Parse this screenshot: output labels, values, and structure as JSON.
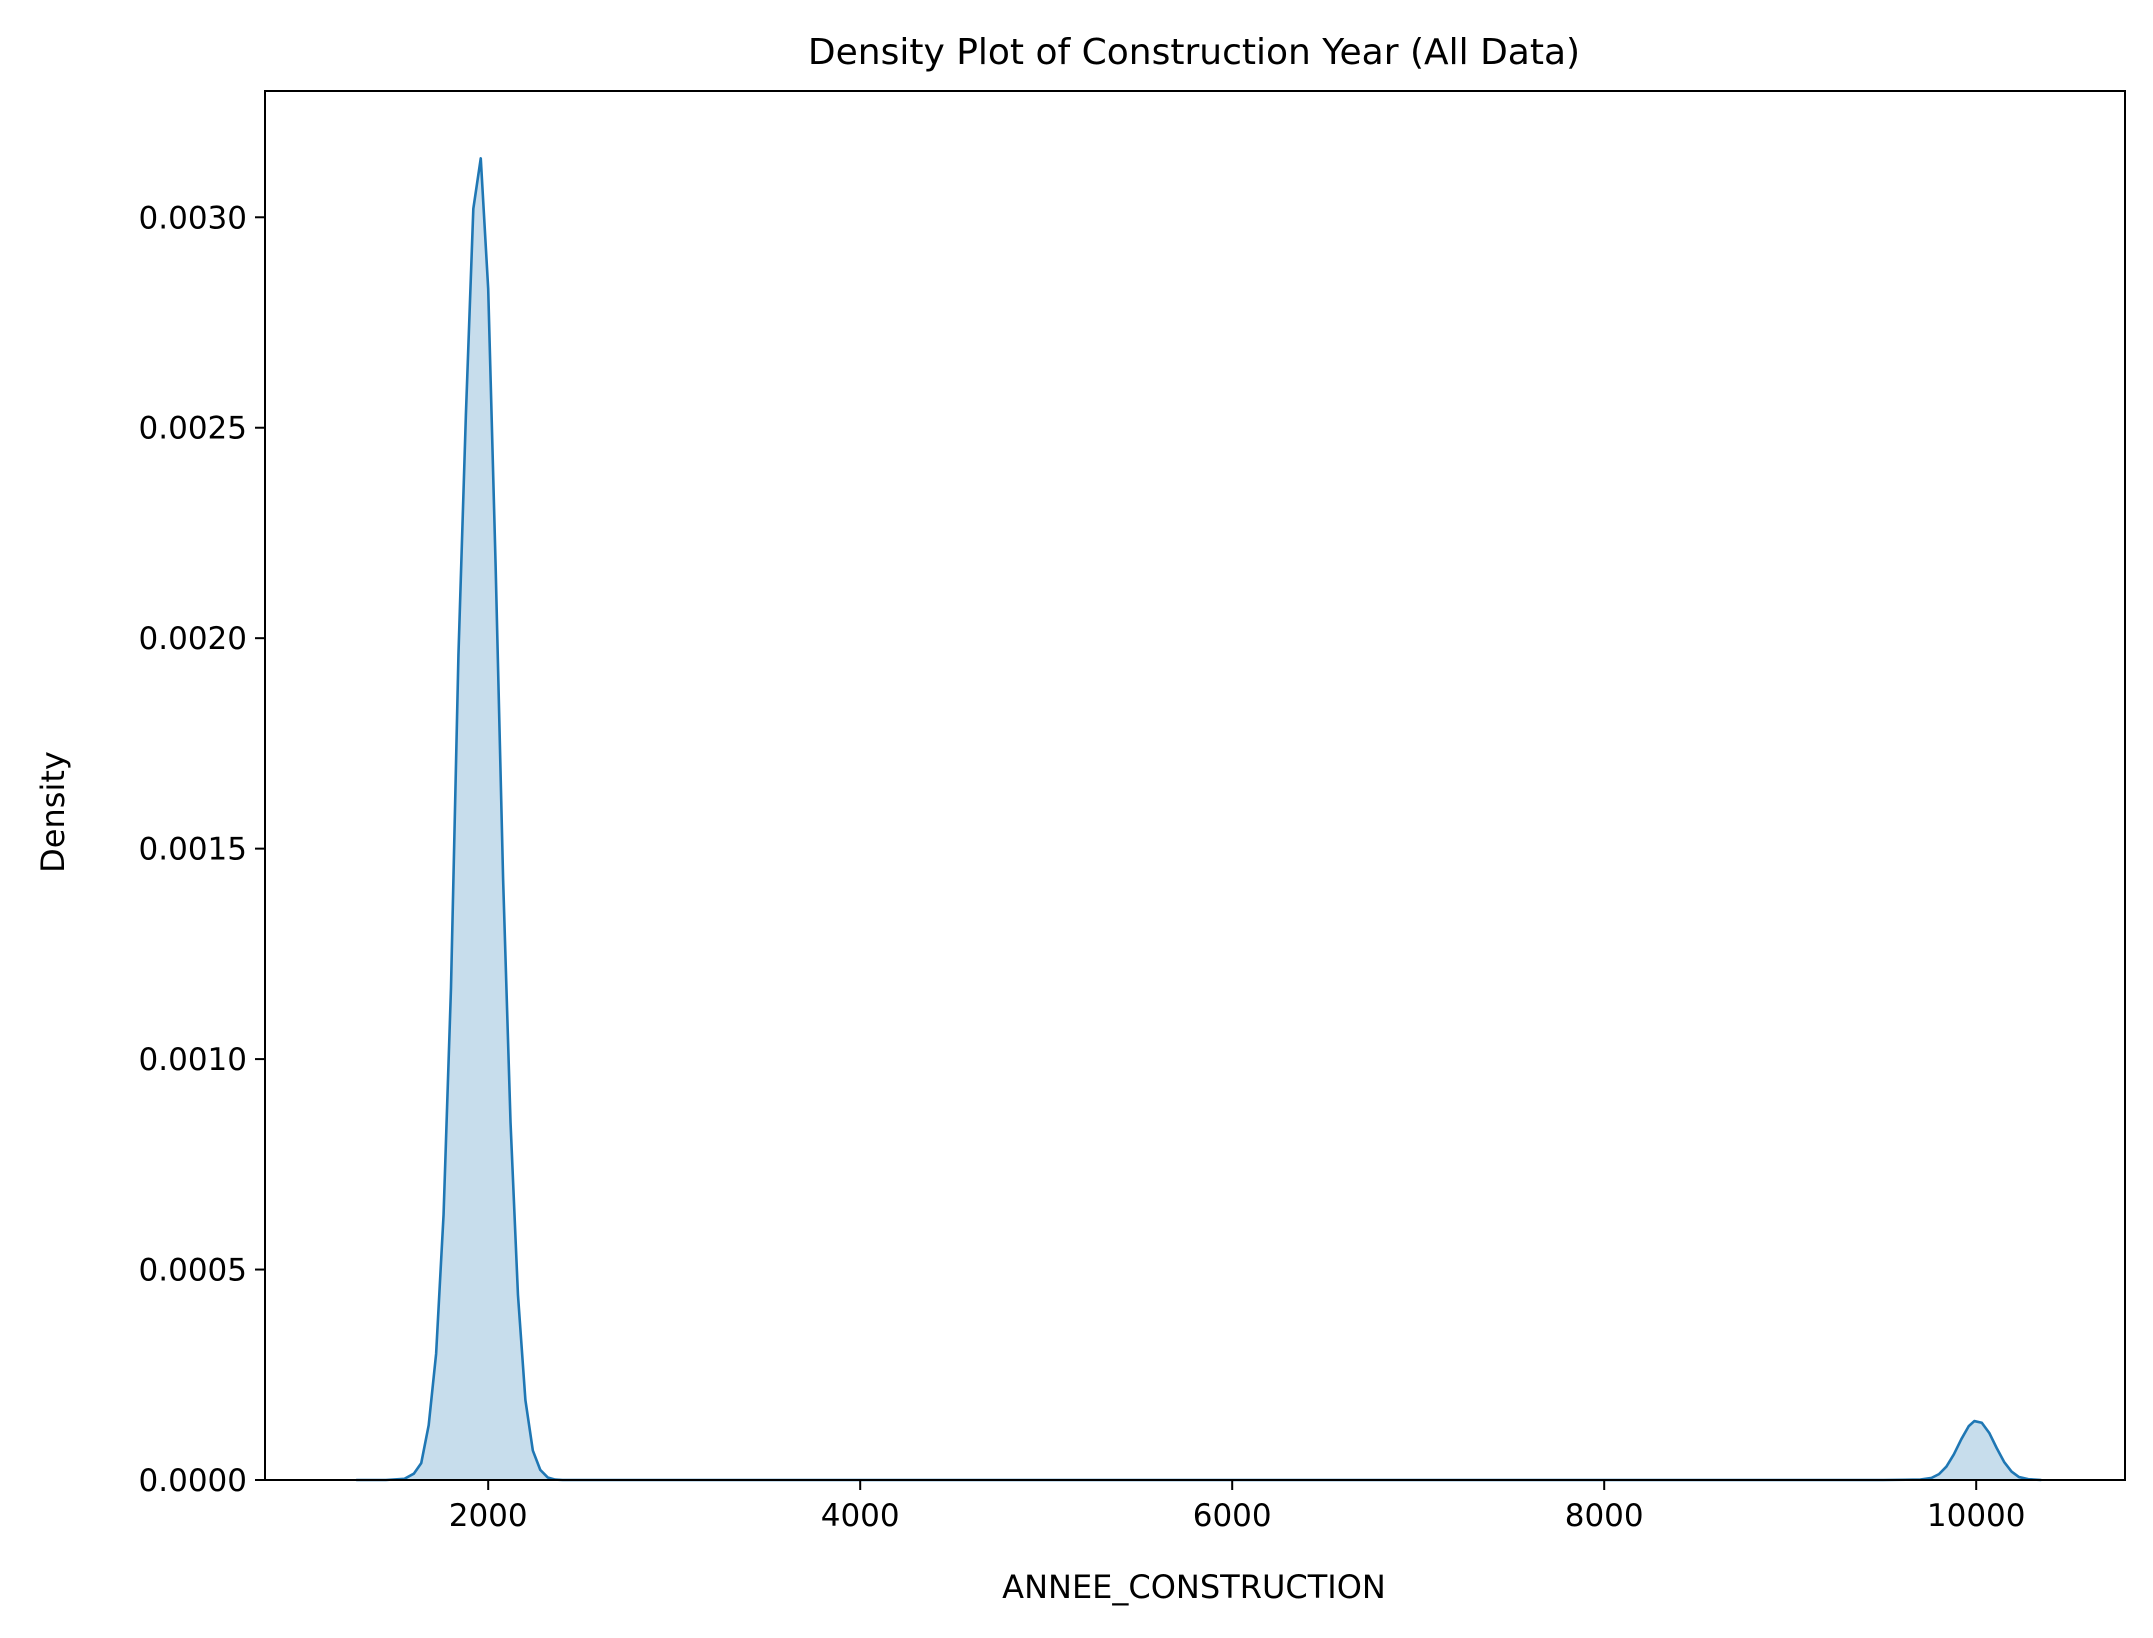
{
  "colors": {
    "line": "#1f77b4",
    "fill": "#1f77b4",
    "fill_opacity": 0.25,
    "axes": "#000000",
    "background": "#ffffff"
  },
  "chart_data": {
    "type": "area",
    "title": "Density Plot of Construction Year (All Data)",
    "xlabel": "ANNEE_CONSTRUCTION",
    "ylabel": "Density",
    "xlim": [
      800,
      10800
    ],
    "ylim": [
      0,
      0.0033
    ],
    "xticks": [
      2000,
      4000,
      6000,
      8000,
      10000
    ],
    "xtick_labels": [
      "2000",
      "4000",
      "6000",
      "8000",
      "10000"
    ],
    "yticks": [
      0.0,
      0.0005,
      0.001,
      0.0015,
      0.002,
      0.0025,
      0.003
    ],
    "ytick_labels": [
      "0.0000",
      "0.0005",
      "0.0010",
      "0.0015",
      "0.0020",
      "0.0025",
      "0.0030"
    ],
    "grid": false,
    "legend": "none",
    "series": [
      {
        "x": [
          1290,
          1450,
          1550,
          1600,
          1640,
          1680,
          1720,
          1760,
          1800,
          1840,
          1880,
          1920,
          1960,
          2000,
          2040,
          2080,
          2120,
          2160,
          2200,
          2240,
          2280,
          2320,
          2360,
          2400,
          2450,
          2500,
          2600,
          2800,
          3000,
          4000,
          5000,
          6000,
          7000,
          8000,
          9000,
          9500,
          9700,
          9760,
          9800,
          9840,
          9880,
          9920,
          9960,
          9990,
          10030,
          10070,
          10110,
          10150,
          10190,
          10230,
          10280,
          10350
        ],
        "y": [
          0.0,
          0.0,
          3e-06,
          1.5e-05,
          4e-05,
          0.00013,
          0.0003,
          0.00063,
          0.00117,
          0.00196,
          0.00253,
          0.00302,
          0.00314,
          0.00283,
          0.00217,
          0.00143,
          0.00085,
          0.00044,
          0.00019,
          7e-05,
          2.4e-05,
          6e-06,
          1e-06,
          0.0,
          0.0,
          0.0,
          0.0,
          0.0,
          0.0,
          0.0,
          0.0,
          0.0,
          0.0,
          0.0,
          0.0,
          0.0,
          1e-06,
          5e-06,
          1.4e-05,
          3.2e-05,
          6.1e-05,
          9.7e-05,
          0.000128,
          0.00014,
          0.000136,
          0.000112,
          7.6e-05,
          4.3e-05,
          2e-05,
          7e-06,
          2e-06,
          0.0
        ]
      }
    ]
  }
}
